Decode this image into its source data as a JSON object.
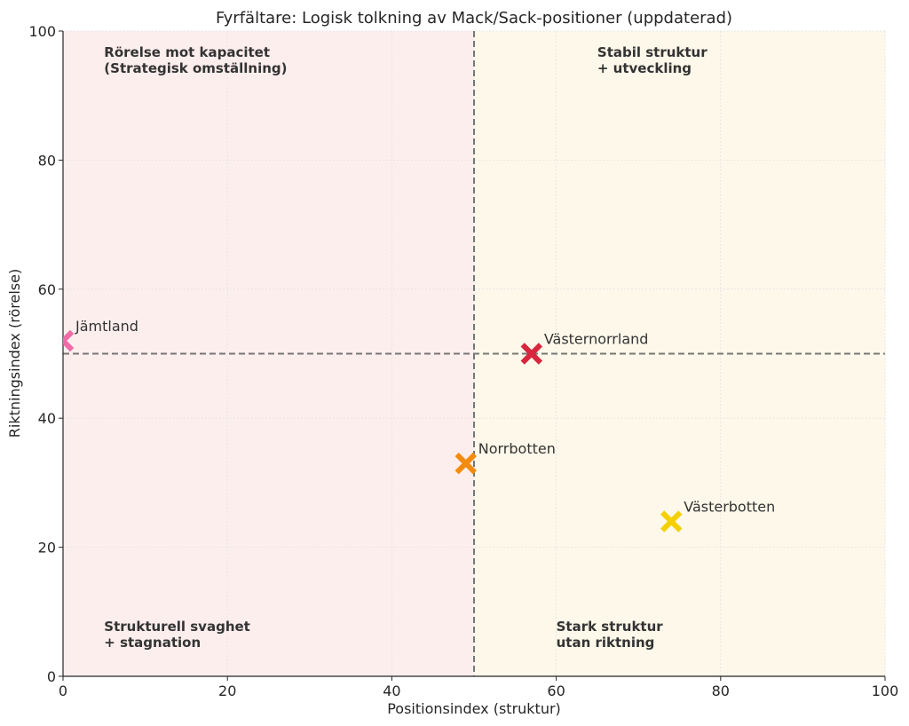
{
  "chart_data": {
    "type": "scatter",
    "title": "Fyrfältare: Logisk tolkning av Mack/Sack-positioner (uppdaterad)",
    "xlabel": "Positionsindex (struktur)",
    "ylabel": "Riktningsindex (rörelse)",
    "xlim": [
      0,
      100
    ],
    "ylim": [
      0,
      100
    ],
    "xticks": [
      "0",
      "20",
      "40",
      "60",
      "80",
      "100"
    ],
    "yticks": [
      "0",
      "20",
      "40",
      "60",
      "80",
      "100"
    ],
    "grid": true,
    "reference_lines": {
      "x": 50,
      "y": 50,
      "style": "dashed",
      "color": "#777777"
    },
    "quadrants": [
      {
        "x_range": [
          0,
          50
        ],
        "y_range": [
          50,
          100
        ],
        "label": [
          "Rörelse mot kapacitet",
          "(Strategisk omställning)"
        ],
        "fill": "#fdeeee"
      },
      {
        "x_range": [
          50,
          100
        ],
        "y_range": [
          50,
          100
        ],
        "label": [
          "Stabil struktur",
          "+ utveckling"
        ],
        "fill": "#fdf8ea"
      },
      {
        "x_range": [
          0,
          50
        ],
        "y_range": [
          0,
          50
        ],
        "label": [
          "Strukturell svaghet",
          "+ stagnation"
        ],
        "fill": "#fdeeee"
      },
      {
        "x_range": [
          50,
          100
        ],
        "y_range": [
          0,
          50
        ],
        "label": [
          "Stark struktur",
          "utan riktning"
        ],
        "fill": "#fdf8ea"
      }
    ],
    "points": [
      {
        "label": "Jämtland",
        "x": 0,
        "y": 52,
        "color": "#f06ba8",
        "marker": "X"
      },
      {
        "label": "Västernorrland",
        "x": 57,
        "y": 50,
        "color": "#d7263d",
        "marker": "X"
      },
      {
        "label": "Norrbotten",
        "x": 49,
        "y": 33,
        "color": "#f28c0f",
        "marker": "X"
      },
      {
        "label": "Västerbotten",
        "x": 74,
        "y": 24,
        "color": "#f5d000",
        "marker": "X"
      }
    ]
  }
}
